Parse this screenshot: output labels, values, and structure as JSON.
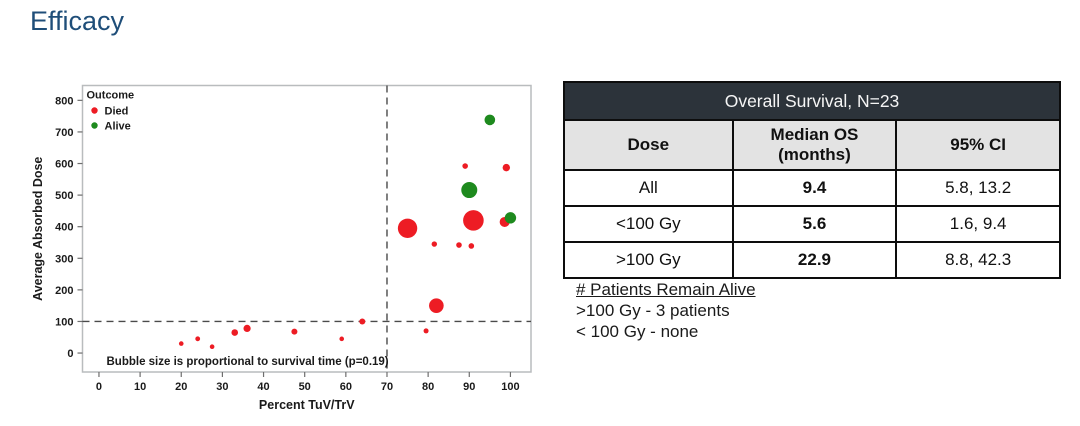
{
  "page": {
    "title": "Efficacy"
  },
  "colors": {
    "title_text": "#1F4E79",
    "died": "#ED1C24",
    "alive": "#1E8A1E",
    "plot_frame": "#b9bcbe",
    "reference_dash": "#4a4a4a",
    "tick": "#6e6e6e",
    "table_title_bg": "#2c333a",
    "table_header_bg": "#e3e3e3"
  },
  "chart_data": {
    "type": "scatter",
    "title": "",
    "x_axis": {
      "label": "Percent TuV/TrV",
      "ticks": [
        0,
        10,
        20,
        30,
        40,
        50,
        60,
        70,
        80,
        90,
        100
      ],
      "range": [
        -4,
        105
      ]
    },
    "y_axis": {
      "label": "Average Absorbed Dose",
      "ticks": [
        0,
        100,
        200,
        300,
        400,
        500,
        600,
        700,
        800
      ],
      "range": [
        -60,
        847
      ]
    },
    "reference_lines": {
      "x": 70,
      "y": 100
    },
    "legend": {
      "title": "Outcome",
      "position": "top-left-inside",
      "items": [
        {
          "label": "Died",
          "color": "#ED1C24"
        },
        {
          "label": "Alive",
          "color": "#1E8A1E"
        }
      ]
    },
    "footnote": "Bubble size is proportional to survival time (p=0.19)",
    "grid": false,
    "bubble_note": "r is bubble radius in px, proportional to survival time",
    "series": [
      {
        "name": "Died",
        "color": "#ED1C24",
        "points": [
          {
            "x": 20,
            "y": 30,
            "r": 2.3
          },
          {
            "x": 24,
            "y": 45,
            "r": 2.4
          },
          {
            "x": 27.5,
            "y": 20,
            "r": 2.3
          },
          {
            "x": 33,
            "y": 65,
            "r": 3.3
          },
          {
            "x": 36,
            "y": 78,
            "r": 3.6
          },
          {
            "x": 47.5,
            "y": 68,
            "r": 3.0
          },
          {
            "x": 59,
            "y": 45,
            "r": 2.3
          },
          {
            "x": 64,
            "y": 100,
            "r": 3.0
          },
          {
            "x": 75,
            "y": 395,
            "r": 9.7
          },
          {
            "x": 79.5,
            "y": 70,
            "r": 2.5
          },
          {
            "x": 82,
            "y": 150,
            "r": 7.3
          },
          {
            "x": 81.5,
            "y": 345,
            "r": 2.7
          },
          {
            "x": 87.5,
            "y": 342,
            "r": 2.8
          },
          {
            "x": 90.5,
            "y": 339,
            "r": 2.8
          },
          {
            "x": 89,
            "y": 592,
            "r": 2.8
          },
          {
            "x": 91,
            "y": 420,
            "r": 10.3
          },
          {
            "x": 99,
            "y": 587,
            "r": 3.7
          },
          {
            "x": 98.6,
            "y": 415,
            "r": 5.0
          }
        ]
      },
      {
        "name": "Alive",
        "color": "#1E8A1E",
        "points": [
          {
            "x": 90,
            "y": 516,
            "r": 8.0
          },
          {
            "x": 95,
            "y": 738,
            "r": 5.3
          },
          {
            "x": 100,
            "y": 428,
            "r": 5.7
          }
        ]
      }
    ]
  },
  "table": {
    "title": "Overall Survival, N=23",
    "columns": [
      "Dose",
      "Median OS (months)",
      "95% CI"
    ],
    "rows": [
      {
        "dose": "All",
        "median_os": "9.4",
        "ci": "5.8, 13.2"
      },
      {
        "dose": "<100 Gy",
        "median_os": "5.6",
        "ci": "1.6, 9.4"
      },
      {
        "dose": ">100 Gy",
        "median_os": "22.9",
        "ci": "8.8, 42.3"
      }
    ]
  },
  "notes": {
    "heading": "# Patients Remain Alive",
    "lines": [
      ">100 Gy - 3 patients",
      "< 100 Gy - none"
    ]
  }
}
